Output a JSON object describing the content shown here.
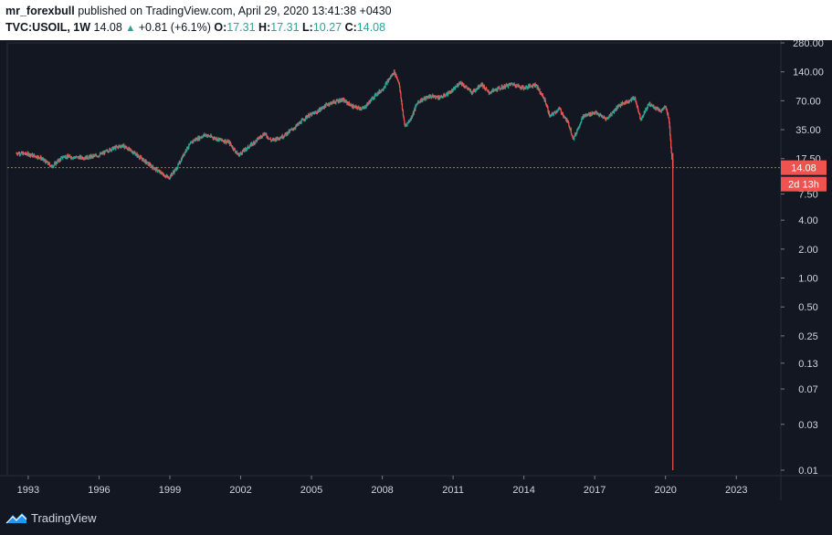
{
  "header": {
    "author": "mr_forexbull",
    "published_text": "published on TradingView.com, April 29, 2020 13:41:38 +0430",
    "symbol": "TVC:USOIL, 1W",
    "last": "14.08",
    "change": "+0.81 (+6.1%)",
    "open_label": "O:",
    "open": "17.31",
    "high_label": "H:",
    "high": "17.31",
    "low_label": "L:",
    "low": "10.27",
    "close_label": "C:",
    "close": "14.08"
  },
  "footer": {
    "brand": "TradingView",
    "logo_icon": "tradingview-logo-icon"
  },
  "price_label": {
    "value": "14.08",
    "countdown": "2d 13h"
  },
  "colors": {
    "background": "#131722",
    "up": "#26a69a",
    "down": "#ef5350",
    "axis_text": "#d1d4dc",
    "price_line": "#ef5350"
  },
  "chart_data": {
    "type": "candlestick",
    "scale": "log",
    "timeframe": "1W",
    "ylim": [
      0.01,
      280
    ],
    "yticks": [
      "280.00",
      "140.00",
      "70.00",
      "35.00",
      "17.50",
      "7.50",
      "4.00",
      "2.00",
      "1.00",
      "0.50",
      "0.25",
      "0.13",
      "0.07",
      "0.03",
      "0.01"
    ],
    "ytick_values": [
      280,
      140,
      70,
      35,
      17.5,
      7.5,
      4,
      2,
      1,
      0.5,
      0.25,
      0.13,
      0.07,
      0.03,
      0.01
    ],
    "xticks": [
      "1993",
      "1996",
      "1999",
      "2002",
      "2005",
      "2008",
      "2011",
      "2014",
      "2017",
      "2020",
      "2023"
    ],
    "xlim": [
      1992.5,
      2024.5
    ],
    "current_price": 14.08,
    "series": [
      {
        "values": [
          [
            1992.5,
            20
          ],
          [
            1993.0,
            19.5
          ],
          [
            1993.5,
            18
          ],
          [
            1994.0,
            14.5
          ],
          [
            1994.5,
            18.5
          ],
          [
            1995.0,
            18
          ],
          [
            1995.5,
            18
          ],
          [
            1996.0,
            19
          ],
          [
            1996.5,
            22
          ],
          [
            1997.0,
            24
          ],
          [
            1997.5,
            20
          ],
          [
            1998.0,
            16
          ],
          [
            1998.5,
            13
          ],
          [
            1998.95,
            11
          ],
          [
            1999.3,
            14
          ],
          [
            1999.7,
            22
          ],
          [
            2000.0,
            27
          ],
          [
            2000.5,
            31
          ],
          [
            2001.0,
            28
          ],
          [
            2001.5,
            26
          ],
          [
            2001.9,
            19
          ],
          [
            2002.5,
            25
          ],
          [
            2003.0,
            32
          ],
          [
            2003.3,
            27
          ],
          [
            2003.8,
            30
          ],
          [
            2004.3,
            37
          ],
          [
            2004.8,
            48
          ],
          [
            2005.2,
            53
          ],
          [
            2005.7,
            65
          ],
          [
            2006.3,
            72
          ],
          [
            2006.8,
            60
          ],
          [
            2007.2,
            58
          ],
          [
            2007.7,
            80
          ],
          [
            2008.0,
            92
          ],
          [
            2008.5,
            140
          ],
          [
            2008.7,
            110
          ],
          [
            2008.95,
            38
          ],
          [
            2009.2,
            45
          ],
          [
            2009.5,
            68
          ],
          [
            2010.0,
            78
          ],
          [
            2010.5,
            76
          ],
          [
            2011.0,
            90
          ],
          [
            2011.3,
            110
          ],
          [
            2011.8,
            85
          ],
          [
            2012.2,
            105
          ],
          [
            2012.5,
            85
          ],
          [
            2013.0,
            95
          ],
          [
            2013.5,
            105
          ],
          [
            2014.0,
            95
          ],
          [
            2014.5,
            104
          ],
          [
            2014.9,
            70
          ],
          [
            2015.1,
            48
          ],
          [
            2015.5,
            58
          ],
          [
            2015.9,
            40
          ],
          [
            2016.1,
            28
          ],
          [
            2016.5,
            48
          ],
          [
            2017.0,
            53
          ],
          [
            2017.5,
            45
          ],
          [
            2018.0,
            62
          ],
          [
            2018.7,
            75
          ],
          [
            2018.95,
            45
          ],
          [
            2019.3,
            65
          ],
          [
            2019.8,
            55
          ],
          [
            2020.0,
            60
          ],
          [
            2020.15,
            45
          ],
          [
            2020.22,
            25
          ],
          [
            2020.27,
            18
          ],
          [
            2020.3,
            12
          ],
          [
            2020.31,
            0.01
          ],
          [
            2020.32,
            14.08
          ]
        ]
      }
    ]
  }
}
